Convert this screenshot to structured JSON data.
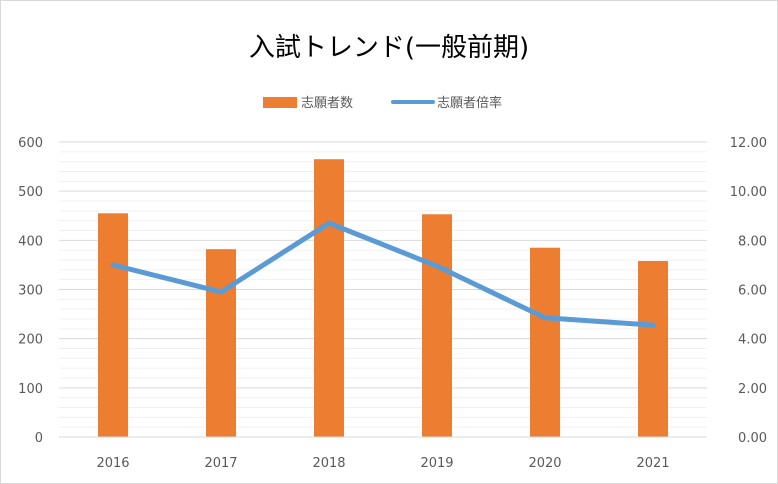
{
  "chart_data": {
    "type": "bar",
    "title": "入試トレンド(一般前期)",
    "categories": [
      "2016",
      "2017",
      "2018",
      "2019",
      "2020",
      "2021"
    ],
    "series": [
      {
        "name": "志願者数",
        "type": "bar",
        "axis": "left",
        "color": "#ED7D31",
        "values": [
          455,
          382,
          565,
          453,
          385,
          358
        ]
      },
      {
        "name": "志願者倍率",
        "type": "line",
        "axis": "right",
        "color": "#5B9BD5",
        "values": [
          7.0,
          5.9,
          8.7,
          6.95,
          4.85,
          4.55
        ]
      }
    ],
    "left_axis": {
      "ylim": [
        0,
        600
      ],
      "ticks": [
        "0",
        "100",
        "200",
        "300",
        "400",
        "500",
        "600"
      ]
    },
    "right_axis": {
      "ylim": [
        0,
        12
      ],
      "ticks": [
        "0.00",
        "2.00",
        "4.00",
        "6.00",
        "8.00",
        "10.00",
        "12.00"
      ]
    },
    "legend": {
      "position": "top"
    },
    "grid": true
  }
}
